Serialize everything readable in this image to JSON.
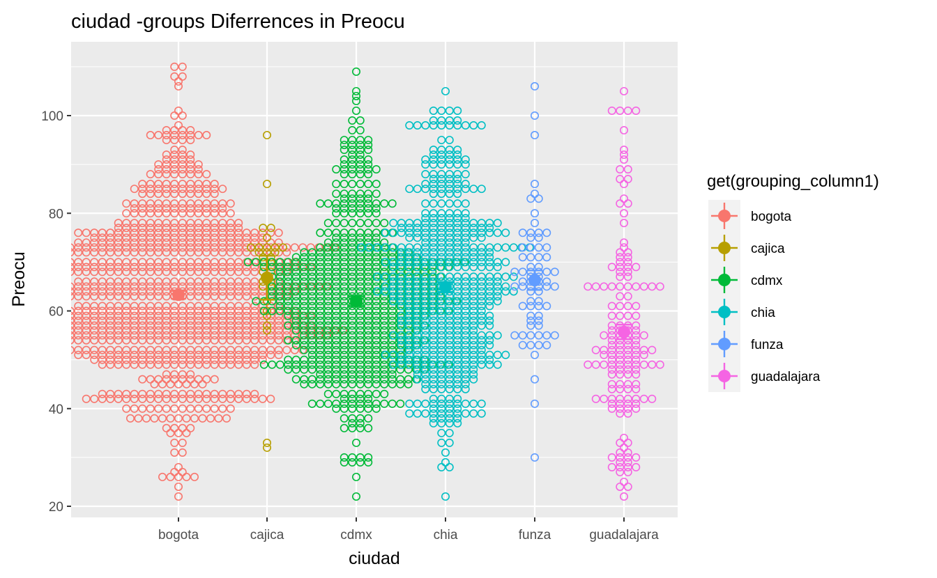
{
  "chart_data": {
    "type": "scatter",
    "subtype": "beeswarm-dotplot-with-mean-errorbars",
    "title": "ciudad -groups Diferrences in  Preocu",
    "xlabel": "ciudad",
    "ylabel": "Preocu",
    "categories": [
      "bogota",
      "cajica",
      "cdmx",
      "chia",
      "funza",
      "guadalajara"
    ],
    "y_ticks": [
      20,
      40,
      60,
      80,
      100
    ],
    "ylim": [
      18.5,
      111.5
    ],
    "grid": true,
    "legend": {
      "title": "get(grouping_column1)",
      "position": "right",
      "entries": [
        "bogota",
        "cajica",
        "cdmx",
        "chia",
        "funza",
        "guadalajara"
      ]
    },
    "colors": {
      "bogota": "#F8766D",
      "cajica": "#B79F00",
      "cdmx": "#00BA38",
      "chia": "#00BFC4",
      "funza": "#619CFF",
      "guadalajara": "#F564E3"
    },
    "series": [
      {
        "name": "bogota",
        "mean": 63.3,
        "ci_low": 62.5,
        "ci_high": 64.1,
        "bins": [
          [
            22,
            1
          ],
          [
            24,
            1
          ],
          [
            26,
            5
          ],
          [
            27,
            2
          ],
          [
            28,
            1
          ],
          [
            31,
            2
          ],
          [
            33,
            2
          ],
          [
            35,
            3
          ],
          [
            36,
            4
          ],
          [
            38,
            13
          ],
          [
            40,
            14
          ],
          [
            42,
            24
          ],
          [
            43,
            20
          ],
          [
            45,
            7
          ],
          [
            46,
            10
          ],
          [
            47,
            4
          ],
          [
            49,
            20
          ],
          [
            50,
            22
          ],
          [
            51,
            26
          ],
          [
            52,
            32
          ],
          [
            54,
            30
          ],
          [
            55,
            38
          ],
          [
            56,
            42
          ],
          [
            57,
            34
          ],
          [
            58,
            30
          ],
          [
            59,
            34
          ],
          [
            60,
            30
          ],
          [
            61,
            26
          ],
          [
            63,
            28
          ],
          [
            64,
            30
          ],
          [
            65,
            38
          ],
          [
            66,
            26
          ],
          [
            68,
            28
          ],
          [
            69,
            34
          ],
          [
            70,
            30
          ],
          [
            72,
            28
          ],
          [
            73,
            40
          ],
          [
            74,
            26
          ],
          [
            75,
            22
          ],
          [
            76,
            26
          ],
          [
            77,
            16
          ],
          [
            78,
            16
          ],
          [
            80,
            14
          ],
          [
            81,
            12
          ],
          [
            82,
            14
          ],
          [
            84,
            10
          ],
          [
            85,
            12
          ],
          [
            86,
            10
          ],
          [
            88,
            8
          ],
          [
            89,
            6
          ],
          [
            90,
            6
          ],
          [
            91,
            4
          ],
          [
            92,
            4
          ],
          [
            93,
            2
          ],
          [
            95,
            4
          ],
          [
            96,
            8
          ],
          [
            97,
            4
          ],
          [
            98,
            1
          ],
          [
            100,
            2
          ],
          [
            101,
            1
          ],
          [
            106,
            1
          ],
          [
            107,
            1
          ],
          [
            108,
            2
          ],
          [
            110,
            2
          ]
        ]
      },
      {
        "name": "cajica",
        "mean": 66.8,
        "ci_low": 62.3,
        "ci_high": 71.3,
        "bins": [
          [
            32,
            1
          ],
          [
            33,
            1
          ],
          [
            56,
            1
          ],
          [
            57,
            1
          ],
          [
            59,
            1
          ],
          [
            60,
            1
          ],
          [
            62,
            1
          ],
          [
            65,
            2
          ],
          [
            66,
            2
          ],
          [
            67,
            1
          ],
          [
            68,
            2
          ],
          [
            70,
            2
          ],
          [
            71,
            2
          ],
          [
            72,
            3
          ],
          [
            73,
            5
          ],
          [
            75,
            1
          ],
          [
            77,
            2
          ],
          [
            86,
            1
          ],
          [
            96,
            1
          ]
        ]
      },
      {
        "name": "cdmx",
        "mean": 62.0,
        "ci_low": 61.0,
        "ci_high": 63.0,
        "bins": [
          [
            22,
            1
          ],
          [
            26,
            1
          ],
          [
            29,
            4
          ],
          [
            30,
            4
          ],
          [
            33,
            1
          ],
          [
            36,
            4
          ],
          [
            37,
            2
          ],
          [
            38,
            4
          ],
          [
            40,
            6
          ],
          [
            41,
            12
          ],
          [
            42,
            4
          ],
          [
            43,
            8
          ],
          [
            45,
            14
          ],
          [
            46,
            16
          ],
          [
            47,
            10
          ],
          [
            48,
            18
          ],
          [
            49,
            24
          ],
          [
            50,
            18
          ],
          [
            51,
            12
          ],
          [
            52,
            14
          ],
          [
            53,
            16
          ],
          [
            54,
            18
          ],
          [
            55,
            14
          ],
          [
            56,
            16
          ],
          [
            57,
            18
          ],
          [
            58,
            16
          ],
          [
            59,
            18
          ],
          [
            60,
            24
          ],
          [
            61,
            20
          ],
          [
            62,
            26
          ],
          [
            63,
            22
          ],
          [
            64,
            22
          ],
          [
            65,
            22
          ],
          [
            66,
            20
          ],
          [
            67,
            22
          ],
          [
            68,
            20
          ],
          [
            69,
            24
          ],
          [
            70,
            28
          ],
          [
            71,
            16
          ],
          [
            72,
            14
          ],
          [
            73,
            10
          ],
          [
            74,
            8
          ],
          [
            75,
            6
          ],
          [
            76,
            10
          ],
          [
            78,
            8
          ],
          [
            80,
            6
          ],
          [
            81,
            6
          ],
          [
            82,
            10
          ],
          [
            83,
            4
          ],
          [
            84,
            6
          ],
          [
            86,
            6
          ],
          [
            88,
            4
          ],
          [
            89,
            6
          ],
          [
            90,
            4
          ],
          [
            91,
            4
          ],
          [
            92,
            2
          ],
          [
            93,
            4
          ],
          [
            94,
            4
          ],
          [
            95,
            4
          ],
          [
            97,
            2
          ],
          [
            99,
            2
          ],
          [
            101,
            1
          ],
          [
            103,
            1
          ],
          [
            104,
            1
          ],
          [
            105,
            1
          ],
          [
            109,
            1
          ]
        ]
      },
      {
        "name": "chia",
        "mean": 64.9,
        "ci_low": 63.9,
        "ci_high": 65.9,
        "bins": [
          [
            22,
            1
          ],
          [
            28,
            2
          ],
          [
            29,
            1
          ],
          [
            31,
            1
          ],
          [
            33,
            2
          ],
          [
            35,
            2
          ],
          [
            37,
            4
          ],
          [
            38,
            4
          ],
          [
            39,
            10
          ],
          [
            40,
            4
          ],
          [
            41,
            10
          ],
          [
            42,
            4
          ],
          [
            44,
            6
          ],
          [
            45,
            6
          ],
          [
            46,
            8
          ],
          [
            47,
            8
          ],
          [
            48,
            8
          ],
          [
            49,
            14
          ],
          [
            50,
            12
          ],
          [
            51,
            16
          ],
          [
            52,
            10
          ],
          [
            53,
            12
          ],
          [
            54,
            12
          ],
          [
            55,
            14
          ],
          [
            56,
            8
          ],
          [
            57,
            12
          ],
          [
            58,
            12
          ],
          [
            59,
            12
          ],
          [
            60,
            10
          ],
          [
            61,
            12
          ],
          [
            62,
            14
          ],
          [
            63,
            14
          ],
          [
            64,
            18
          ],
          [
            65,
            16
          ],
          [
            66,
            14
          ],
          [
            67,
            18
          ],
          [
            69,
            14
          ],
          [
            70,
            16
          ],
          [
            71,
            12
          ],
          [
            72,
            12
          ],
          [
            73,
            22
          ],
          [
            74,
            6
          ],
          [
            75,
            10
          ],
          [
            76,
            16
          ],
          [
            77,
            12
          ],
          [
            78,
            14
          ],
          [
            79,
            6
          ],
          [
            80,
            6
          ],
          [
            82,
            6
          ],
          [
            84,
            4
          ],
          [
            85,
            10
          ],
          [
            86,
            6
          ],
          [
            87,
            4
          ],
          [
            88,
            6
          ],
          [
            90,
            6
          ],
          [
            91,
            6
          ],
          [
            92,
            4
          ],
          [
            93,
            4
          ],
          [
            95,
            2
          ],
          [
            98,
            10
          ],
          [
            99,
            4
          ],
          [
            101,
            4
          ],
          [
            105,
            1
          ]
        ]
      },
      {
        "name": "funza",
        "mean": 66.3,
        "ci_low": 64.3,
        "ci_high": 68.3,
        "bins": [
          [
            30,
            1
          ],
          [
            41,
            1
          ],
          [
            46,
            1
          ],
          [
            51,
            1
          ],
          [
            53,
            4
          ],
          [
            55,
            6
          ],
          [
            57,
            2
          ],
          [
            58,
            2
          ],
          [
            59,
            2
          ],
          [
            61,
            4
          ],
          [
            62,
            2
          ],
          [
            64,
            2
          ],
          [
            65,
            6
          ],
          [
            66,
            4
          ],
          [
            67,
            2
          ],
          [
            68,
            6
          ],
          [
            69,
            2
          ],
          [
            71,
            4
          ],
          [
            73,
            4
          ],
          [
            75,
            2
          ],
          [
            76,
            4
          ],
          [
            78,
            1
          ],
          [
            80,
            1
          ],
          [
            83,
            2
          ],
          [
            84,
            1
          ],
          [
            86,
            1
          ],
          [
            96,
            1
          ],
          [
            100,
            1
          ],
          [
            106,
            1
          ]
        ]
      },
      {
        "name": "guadalajara",
        "mean": 55.7,
        "ci_low": 54.2,
        "ci_high": 57.2,
        "bins": [
          [
            22,
            1
          ],
          [
            24,
            2
          ],
          [
            25,
            1
          ],
          [
            27,
            2
          ],
          [
            28,
            4
          ],
          [
            29,
            2
          ],
          [
            30,
            4
          ],
          [
            31,
            2
          ],
          [
            32,
            1
          ],
          [
            33,
            2
          ],
          [
            34,
            1
          ],
          [
            39,
            2
          ],
          [
            40,
            4
          ],
          [
            41,
            4
          ],
          [
            42,
            8
          ],
          [
            44,
            4
          ],
          [
            45,
            4
          ],
          [
            47,
            4
          ],
          [
            48,
            4
          ],
          [
            49,
            10
          ],
          [
            50,
            4
          ],
          [
            51,
            6
          ],
          [
            52,
            8
          ],
          [
            53,
            4
          ],
          [
            54,
            4
          ],
          [
            55,
            6
          ],
          [
            56,
            4
          ],
          [
            57,
            4
          ],
          [
            59,
            4
          ],
          [
            61,
            4
          ],
          [
            63,
            2
          ],
          [
            65,
            10
          ],
          [
            67,
            2
          ],
          [
            68,
            2
          ],
          [
            69,
            4
          ],
          [
            70,
            2
          ],
          [
            71,
            2
          ],
          [
            72,
            2
          ],
          [
            73,
            1
          ],
          [
            74,
            1
          ],
          [
            78,
            1
          ],
          [
            80,
            1
          ],
          [
            82,
            2
          ],
          [
            83,
            1
          ],
          [
            86,
            1
          ],
          [
            87,
            2
          ],
          [
            89,
            2
          ],
          [
            91,
            1
          ],
          [
            92,
            1
          ],
          [
            93,
            1
          ],
          [
            97,
            1
          ],
          [
            101,
            4
          ],
          [
            105,
            1
          ]
        ]
      }
    ]
  }
}
